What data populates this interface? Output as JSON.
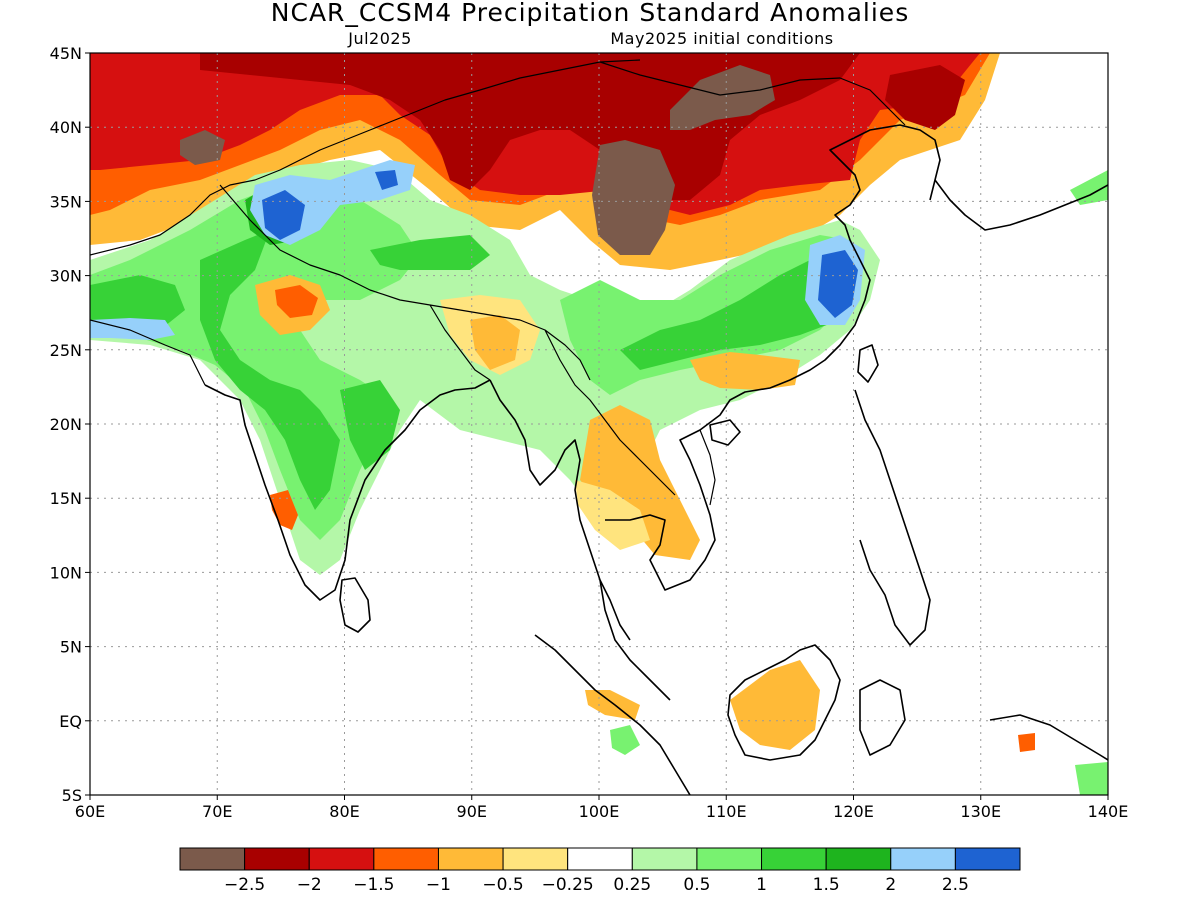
{
  "title": "NCAR_CCSM4 Precipitation Standard Anomalies",
  "subtitle_left": "Jul2025",
  "subtitle_right": "May2025 initial conditions",
  "map": {
    "lon_range": [
      60,
      140
    ],
    "lat_range": [
      -5,
      45
    ],
    "x_ticks": [
      "60E",
      "70E",
      "80E",
      "90E",
      "100E",
      "110E",
      "120E",
      "130E",
      "140E"
    ],
    "y_ticks": [
      "45N",
      "40N",
      "35N",
      "30N",
      "25N",
      "20N",
      "15N",
      "10N",
      "5N",
      "EQ",
      "5S"
    ],
    "gridlines": true
  },
  "legend": {
    "colors": [
      "#7b5a4b",
      "#a80000",
      "#d61010",
      "#ff5e00",
      "#ffba37",
      "#ffe47e",
      "#ffffff",
      "#b4f7a8",
      "#78f270",
      "#37d237",
      "#1eb41e",
      "#96d0fa",
      "#1e63d2"
    ],
    "labels": [
      "−2.5",
      "−2",
      "−1.5",
      "−1",
      "−0.5",
      "−0.25",
      "0.25",
      "0.5",
      "1",
      "1.5",
      "2",
      "2.5"
    ]
  },
  "colors": {
    "brown": "#7b5a4b",
    "dark_red": "#a80000",
    "red": "#d61010",
    "orange_red": "#ff5e00",
    "orange": "#ffba37",
    "yellow": "#ffe47e",
    "light_green": "#b4f7a8",
    "green": "#78f270",
    "mid_green": "#37d237",
    "dark_green": "#1eb41e",
    "light_blue": "#96d0fa",
    "blue": "#1e63d2"
  }
}
